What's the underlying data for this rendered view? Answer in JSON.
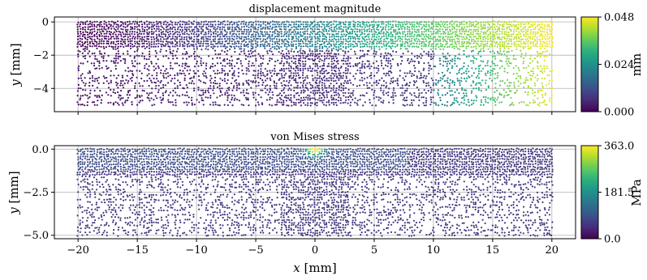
{
  "chart_data": [
    {
      "type": "scatter",
      "title": "displacement magnitude",
      "xlabel": "x [mm]",
      "ylabel": "y [mm]",
      "xlim": [
        -22,
        22
      ],
      "ylim": [
        -5.4,
        0.3
      ],
      "xticks": [
        "−20",
        "−15",
        "−10",
        "−5",
        "0",
        "5",
        "10",
        "15",
        "20"
      ],
      "xtick_values": [
        -20,
        -15,
        -10,
        -5,
        0,
        5,
        10,
        15,
        20
      ],
      "yticks": [
        "0",
        "−2",
        "−4"
      ],
      "ytick_values": [
        0,
        -2,
        -4
      ],
      "grid": true,
      "colorbar": {
        "label": "mm",
        "min": 0.0,
        "max": 0.048,
        "ticks": [
          "0.000",
          "0.024",
          "0.048"
        ],
        "tick_values": [
          0.0,
          0.024,
          0.048
        ],
        "colormap": "viridis"
      },
      "domain": {
        "x": [
          -20,
          20
        ],
        "y": [
          -5,
          0
        ]
      }
    },
    {
      "type": "scatter",
      "title": "von Mises stress",
      "xlabel": "x [mm]",
      "ylabel": "y [mm]",
      "xlim": [
        -22,
        22
      ],
      "ylim": [
        -5.2,
        0.2
      ],
      "xticks": [
        "−20",
        "−15",
        "−10",
        "−5",
        "0",
        "5",
        "10",
        "15",
        "20"
      ],
      "xtick_values": [
        -20,
        -15,
        -10,
        -5,
        0,
        5,
        10,
        15,
        20
      ],
      "yticks": [
        "0.0",
        "−2.5",
        "−5.0"
      ],
      "ytick_values": [
        0,
        -2.5,
        -5.0
      ],
      "grid": true,
      "colorbar": {
        "label": "MPa",
        "min": 0.0,
        "max": 363.0,
        "ticks": [
          "0.0",
          "181.5",
          "363.0"
        ],
        "tick_values": [
          0.0,
          181.5,
          363.0
        ],
        "colormap": "viridis"
      },
      "domain": {
        "x": [
          -20,
          20
        ],
        "y": [
          -5,
          0
        ]
      }
    }
  ]
}
